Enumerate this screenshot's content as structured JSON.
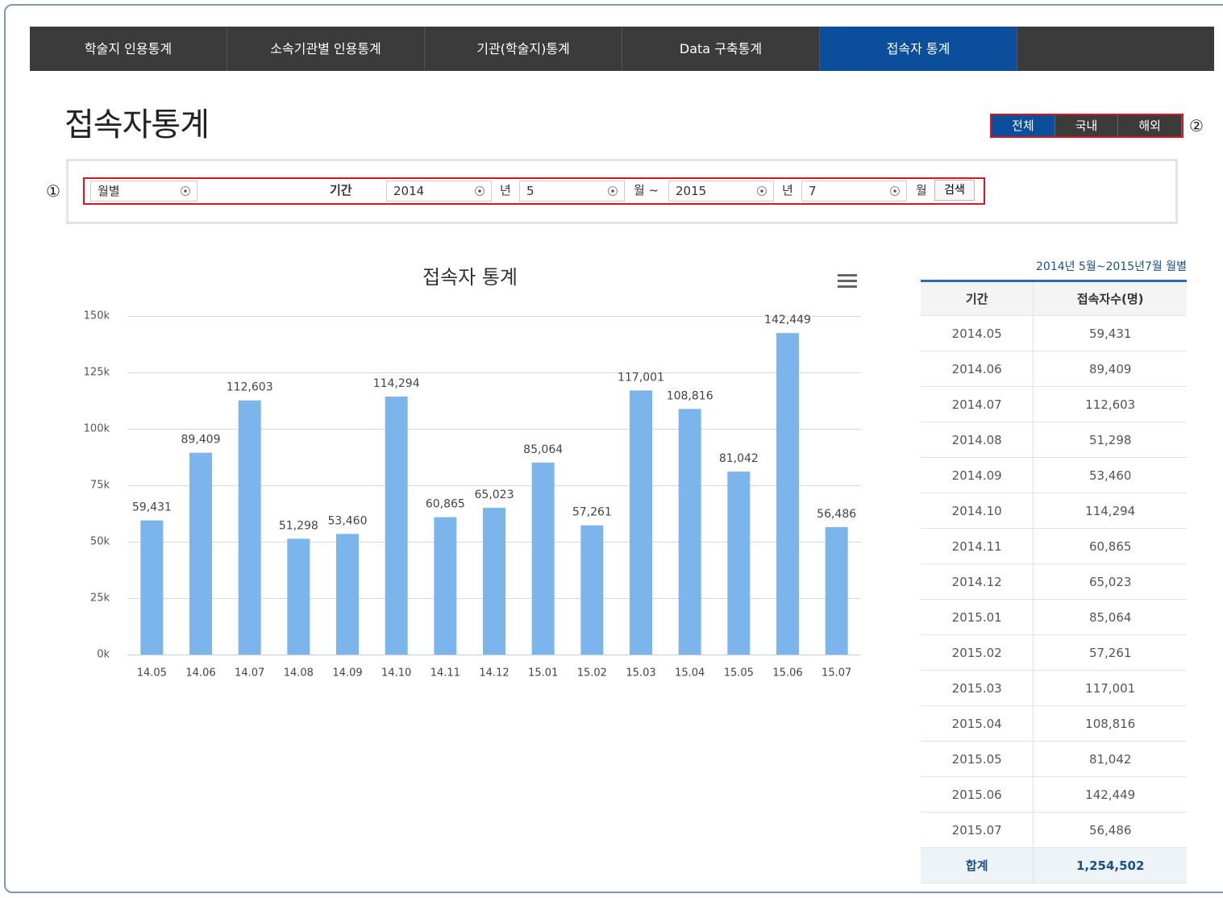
{
  "nav": {
    "items": [
      "학술지 인용통계",
      "소속기관별 인용통계",
      "기관(학술지)통계",
      "Data 구축통계",
      "접속자 통계"
    ],
    "active": 4
  },
  "header": {
    "title": "접속자통계"
  },
  "region": {
    "buttons": [
      "전체",
      "국내",
      "해외"
    ],
    "active": 0,
    "marker": "②"
  },
  "filter": {
    "marker": "①",
    "unit": "월별",
    "period_label": "기간",
    "start_year": "2014",
    "year_label": "년",
    "start_month": "5",
    "range_label": "월 ~",
    "end_year": "2015",
    "end_month": "7",
    "month_label": "월",
    "search": "검색"
  },
  "chart_data": {
    "type": "bar",
    "title": "접속자 통계",
    "categories": [
      "14.05",
      "14.06",
      "14.07",
      "14.08",
      "14.09",
      "14.10",
      "14.11",
      "14.12",
      "15.01",
      "15.02",
      "15.03",
      "15.04",
      "15.05",
      "15.06",
      "15.07"
    ],
    "values": [
      59431,
      89409,
      112603,
      51298,
      53460,
      114294,
      60865,
      65023,
      85064,
      57261,
      117001,
      108816,
      81042,
      142449,
      56486
    ],
    "value_labels": [
      "59,431",
      "89,409",
      "112,603",
      "51,298",
      "53,460",
      "114,294",
      "60,865",
      "65,023",
      "85,064",
      "57,261",
      "117,001",
      "108,816",
      "81,042",
      "142,449",
      "56,486"
    ],
    "color": "#7cb5ec",
    "ylim": [
      0,
      150000
    ],
    "yticks": [
      {
        "value": 0,
        "label": "0k"
      },
      {
        "value": 25000,
        "label": "25k"
      },
      {
        "value": 50000,
        "label": "50k"
      },
      {
        "value": 75000,
        "label": "75k"
      },
      {
        "value": 100000,
        "label": "100k"
      },
      {
        "value": 125000,
        "label": "125k"
      },
      {
        "value": 150000,
        "label": "150k"
      }
    ],
    "grid": true
  },
  "table": {
    "caption": "2014년 5월~2015년7월 월별",
    "headers": [
      "기간",
      "접속자수(명)"
    ],
    "rows": [
      [
        "2014.05",
        "59,431"
      ],
      [
        "2014.06",
        "89,409"
      ],
      [
        "2014.07",
        "112,603"
      ],
      [
        "2014.08",
        "51,298"
      ],
      [
        "2014.09",
        "53,460"
      ],
      [
        "2014.10",
        "114,294"
      ],
      [
        "2014.11",
        "60,865"
      ],
      [
        "2014.12",
        "65,023"
      ],
      [
        "2015.01",
        "85,064"
      ],
      [
        "2015.02",
        "57,261"
      ],
      [
        "2015.03",
        "117,001"
      ],
      [
        "2015.04",
        "108,816"
      ],
      [
        "2015.05",
        "81,042"
      ],
      [
        "2015.06",
        "142,449"
      ],
      [
        "2015.07",
        "56,486"
      ]
    ],
    "footer": [
      "합계",
      "1,254,502"
    ]
  }
}
